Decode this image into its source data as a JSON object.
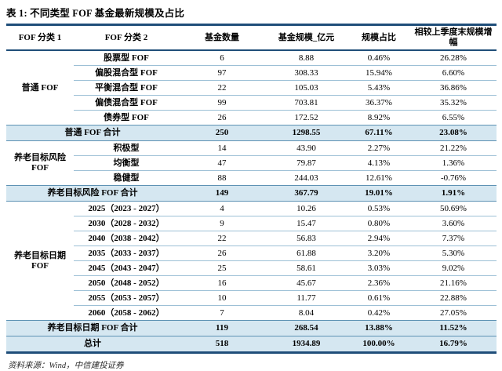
{
  "title": "表 1: 不同类型 FOF 基金最新规模及占比",
  "source_note": "资料来源：Wind，中信建投证券",
  "colors": {
    "rule_navy": "#1F4E79",
    "subtotal_background": "#D5E7F1",
    "subtotal_border": "#5E92B4",
    "row_separator": "#9DC0D6",
    "text": "#000000"
  },
  "table": {
    "columns": [
      "FOF 分类 1",
      "FOF 分类 2",
      "基金数量",
      "基金规模_亿元",
      "规模占比",
      "相较上季度末规模增幅"
    ],
    "rows": [
      {
        "kind": "data",
        "first": true,
        "group": "普通 FOF",
        "group_span": 5,
        "category": "股票型 FOF",
        "values": [
          "6",
          "8.88",
          "0.46%",
          "26.28%"
        ]
      },
      {
        "kind": "data",
        "category": "偏股混合型 FOF",
        "values": [
          "97",
          "308.33",
          "15.94%",
          "6.60%"
        ]
      },
      {
        "kind": "data",
        "category": "平衡混合型 FOF",
        "values": [
          "22",
          "105.03",
          "5.43%",
          "36.86%"
        ]
      },
      {
        "kind": "data",
        "category": "偏债混合型 FOF",
        "values": [
          "99",
          "703.81",
          "36.37%",
          "35.32%"
        ]
      },
      {
        "kind": "data",
        "category": "债券型 FOF",
        "values": [
          "26",
          "172.52",
          "8.92%",
          "6.55%"
        ]
      },
      {
        "kind": "subtotal",
        "label": "普通 FOF 合计",
        "values": [
          "250",
          "1298.55",
          "67.11%",
          "23.08%"
        ]
      },
      {
        "kind": "data",
        "first": true,
        "group": "养老目标风险 FOF",
        "group_span": 3,
        "category": "积极型",
        "values": [
          "14",
          "43.90",
          "2.27%",
          "21.22%"
        ]
      },
      {
        "kind": "data",
        "category": "均衡型",
        "values": [
          "47",
          "79.87",
          "4.13%",
          "1.36%"
        ]
      },
      {
        "kind": "data",
        "category": "稳健型",
        "values": [
          "88",
          "244.03",
          "12.61%",
          "-0.76%"
        ]
      },
      {
        "kind": "subtotal",
        "label": "养老目标风险 FOF 合计",
        "values": [
          "149",
          "367.79",
          "19.01%",
          "1.91%"
        ]
      },
      {
        "kind": "data",
        "first": true,
        "group": "养老目标日期 FOF",
        "group_span": 8,
        "category": "2025（2023 - 2027）",
        "values": [
          "4",
          "10.26",
          "0.53%",
          "50.69%"
        ]
      },
      {
        "kind": "data",
        "category": "2030（2028 - 2032）",
        "values": [
          "9",
          "15.47",
          "0.80%",
          "3.60%"
        ]
      },
      {
        "kind": "data",
        "category": "2040（2038 - 2042）",
        "values": [
          "22",
          "56.83",
          "2.94%",
          "7.37%"
        ]
      },
      {
        "kind": "data",
        "category": "2035（2033 - 2037）",
        "values": [
          "26",
          "61.88",
          "3.20%",
          "5.30%"
        ]
      },
      {
        "kind": "data",
        "category": "2045（2043 - 2047）",
        "values": [
          "25",
          "58.61",
          "3.03%",
          "9.02%"
        ]
      },
      {
        "kind": "data",
        "category": "2050（2048 - 2052）",
        "values": [
          "16",
          "45.67",
          "2.36%",
          "21.16%"
        ]
      },
      {
        "kind": "data",
        "category": "2055（2053 - 2057）",
        "values": [
          "10",
          "11.77",
          "0.61%",
          "22.88%"
        ]
      },
      {
        "kind": "data",
        "category": "2060（2058 - 2062）",
        "values": [
          "7",
          "8.04",
          "0.42%",
          "27.05%"
        ]
      },
      {
        "kind": "subtotal",
        "label": "养老目标日期 FOF 合计",
        "values": [
          "119",
          "268.54",
          "13.88%",
          "11.52%"
        ]
      },
      {
        "kind": "subtotal",
        "total": true,
        "label": "总计",
        "values": [
          "518",
          "1934.89",
          "100.00%",
          "16.79%"
        ]
      }
    ]
  }
}
